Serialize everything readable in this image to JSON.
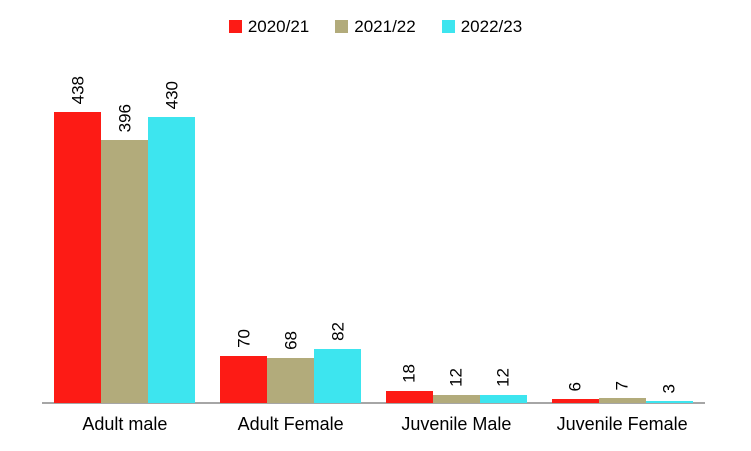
{
  "chart_data": {
    "type": "bar",
    "title": "",
    "xlabel": "",
    "ylabel": "",
    "categories": [
      "Adult male",
      "Adult Female",
      "Juvenile Male",
      "Juvenile Female"
    ],
    "series": [
      {
        "name": "2020/21",
        "color": "#fd1b15",
        "values": [
          438,
          70,
          18,
          6
        ]
      },
      {
        "name": "2021/22",
        "color": "#b2ab7b",
        "values": [
          396,
          68,
          12,
          7
        ]
      },
      {
        "name": "2022/23",
        "color": "#3de5ef",
        "values": [
          430,
          82,
          12,
          3
        ]
      }
    ],
    "ylim": [
      0,
      450
    ],
    "grid": false,
    "y_axis_visible": false,
    "legend_position": "top-center",
    "data_labels": "above-bars-rotated-90",
    "axis_line_color": "#a6a6a6",
    "background_color": "#ffffff",
    "text_color": "#000000"
  }
}
